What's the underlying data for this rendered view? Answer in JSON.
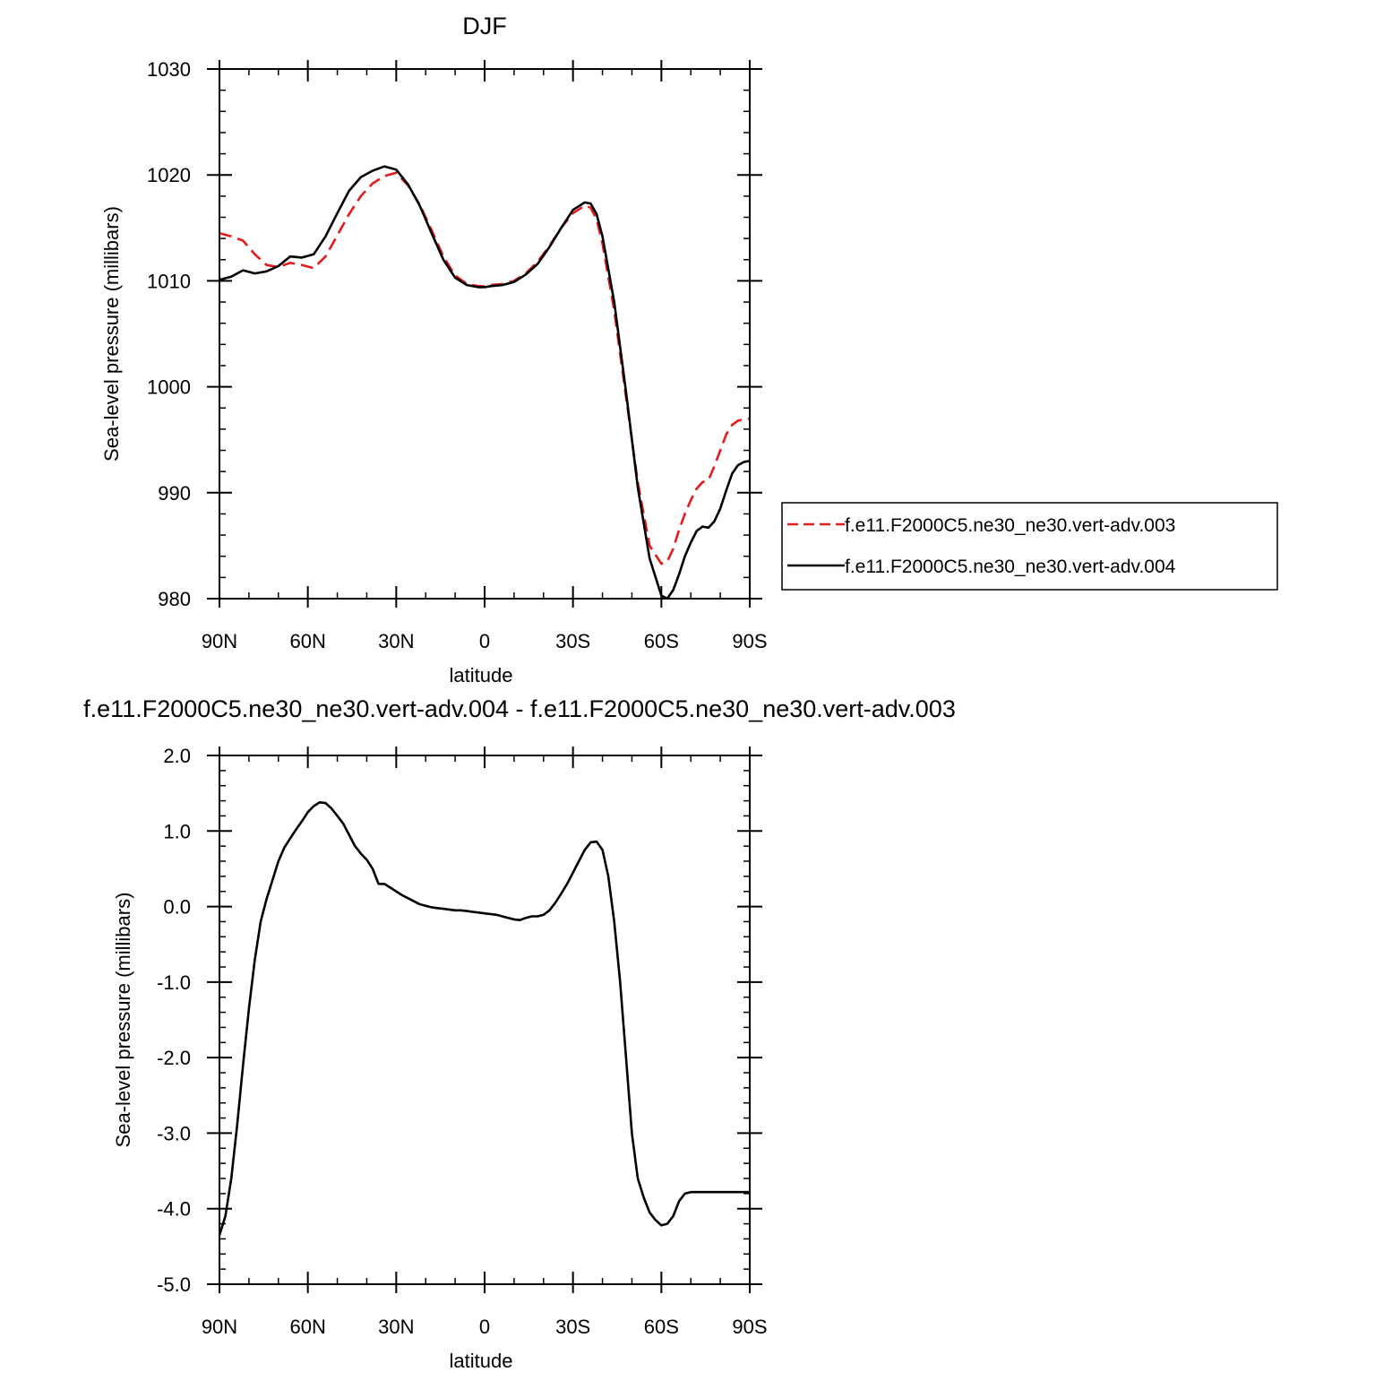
{
  "chart_data": [
    {
      "type": "line",
      "title": "DJF",
      "xlabel": "latitude",
      "ylabel": "Sea-level pressure (millibars)",
      "xlim": [
        90,
        -90
      ],
      "ylim": [
        980,
        1030
      ],
      "x_ticks": [
        90,
        60,
        30,
        0,
        -30,
        -60,
        -90
      ],
      "x_tick_labels": [
        "90N",
        "60N",
        "30N",
        "0",
        "30S",
        "60S",
        "90S"
      ],
      "y_ticks": [
        980,
        990,
        1000,
        1010,
        1020,
        1030
      ],
      "y_tick_labels": [
        "980",
        "990",
        "1000",
        "1010",
        "1020",
        "1030"
      ],
      "legend_position": "right",
      "series": [
        {
          "name": "f.e11.F2000C5.ne30_ne30.vert-adv.003",
          "color": "#e41a1c",
          "dash": "dashed",
          "x": [
            90,
            86,
            82,
            78,
            74,
            70,
            66,
            62,
            58,
            54,
            50,
            46,
            42,
            38,
            34,
            30,
            26,
            22,
            18,
            14,
            10,
            6,
            2,
            0,
            -2,
            -6,
            -10,
            -14,
            -18,
            -22,
            -26,
            -30,
            -34,
            -36,
            -38,
            -40,
            -44,
            -48,
            -52,
            -56,
            -60,
            -62,
            -64,
            -66,
            -68,
            -70,
            -72,
            -74,
            -76,
            -78,
            -80,
            -82,
            -84,
            -86,
            -88,
            -90
          ],
          "y": [
            1014.5,
            1014.2,
            1013.8,
            1012.5,
            1011.5,
            1011.3,
            1011.7,
            1011.5,
            1011.2,
            1012.3,
            1014.3,
            1016.3,
            1018.0,
            1019.2,
            1019.9,
            1020.2,
            1019.0,
            1017.2,
            1014.8,
            1012.3,
            1010.5,
            1009.7,
            1009.5,
            1009.5,
            1009.6,
            1009.7,
            1010.0,
            1010.7,
            1011.8,
            1013.3,
            1015.0,
            1016.4,
            1017.1,
            1016.9,
            1015.8,
            1013.5,
            1007.2,
            999.0,
            991.0,
            985.0,
            983.3,
            983.5,
            984.7,
            986.5,
            988.0,
            989.3,
            990.4,
            991.0,
            991.2,
            992.5,
            994.0,
            995.5,
            996.4,
            996.8,
            996.9,
            997.0
          ]
        },
        {
          "name": "f.e11.F2000C5.ne30_ne30.vert-adv.004",
          "color": "#000000",
          "dash": "solid",
          "x": [
            90,
            86,
            82,
            78,
            74,
            70,
            66,
            62,
            58,
            54,
            50,
            46,
            42,
            38,
            34,
            30,
            26,
            22,
            18,
            14,
            10,
            6,
            2,
            0,
            -2,
            -6,
            -10,
            -14,
            -18,
            -22,
            -26,
            -30,
            -34,
            -36,
            -38,
            -40,
            -44,
            -48,
            -52,
            -56,
            -60,
            -62,
            -64,
            -66,
            -68,
            -70,
            -72,
            -74,
            -76,
            -78,
            -80,
            -82,
            -84,
            -86,
            -88,
            -90
          ],
          "y": [
            1010.1,
            1010.4,
            1011.0,
            1010.7,
            1010.9,
            1011.4,
            1012.3,
            1012.2,
            1012.5,
            1014.2,
            1016.4,
            1018.5,
            1019.8,
            1020.4,
            1020.8,
            1020.5,
            1019.1,
            1017.1,
            1014.5,
            1012.0,
            1010.3,
            1009.6,
            1009.4,
            1009.4,
            1009.5,
            1009.6,
            1009.9,
            1010.6,
            1011.6,
            1013.2,
            1015.0,
            1016.7,
            1017.4,
            1017.3,
            1016.3,
            1014.2,
            1008.0,
            999.5,
            990.5,
            983.8,
            980.3,
            980.0,
            980.8,
            982.3,
            984.0,
            985.3,
            986.4,
            986.8,
            986.7,
            987.3,
            988.5,
            990.2,
            991.8,
            992.6,
            992.9,
            993.0
          ]
        }
      ]
    },
    {
      "type": "line",
      "title": "f.e11.F2000C5.ne30_ne30.vert-adv.004 - f.e11.F2000C5.ne30_ne30.vert-adv.003",
      "xlabel": "latitude",
      "ylabel": "Sea-level pressure (millibars)",
      "xlim": [
        90,
        -90
      ],
      "ylim": [
        -5,
        2
      ],
      "x_ticks": [
        90,
        60,
        30,
        0,
        -30,
        -60,
        -90
      ],
      "x_tick_labels": [
        "90N",
        "60N",
        "30N",
        "0",
        "30S",
        "60S",
        "90S"
      ],
      "y_ticks": [
        -5,
        -4,
        -3,
        -2,
        -1,
        0,
        1,
        2
      ],
      "y_tick_labels": [
        "-5.0",
        "-4.0",
        "-3.0",
        "-2.0",
        "-1.0",
        "0.0",
        "1.0",
        "2.0"
      ],
      "series": [
        {
          "color": "#000000",
          "dash": "solid",
          "x": [
            90,
            88,
            86,
            84,
            82,
            80,
            78,
            76,
            74,
            72,
            70,
            68,
            66,
            64,
            62,
            60,
            58,
            56,
            54,
            52,
            50,
            48,
            46,
            44,
            42,
            40,
            38,
            36,
            34,
            32,
            30,
            28,
            26,
            24,
            22,
            20,
            18,
            16,
            14,
            12,
            10,
            8,
            6,
            4,
            2,
            0,
            -2,
            -4,
            -6,
            -8,
            -10,
            -12,
            -14,
            -16,
            -18,
            -20,
            -22,
            -24,
            -26,
            -28,
            -30,
            -32,
            -34,
            -36,
            -38,
            -40,
            -42,
            -44,
            -46,
            -48,
            -50,
            -52,
            -54,
            -56,
            -58,
            -60,
            -62,
            -64,
            -66,
            -68,
            -70,
            -72,
            -74,
            -76,
            -78,
            -80,
            -82,
            -84,
            -86,
            -88,
            -90
          ],
          "y": [
            -4.35,
            -4.1,
            -3.6,
            -2.9,
            -2.1,
            -1.35,
            -0.7,
            -0.2,
            0.1,
            0.35,
            0.6,
            0.78,
            0.9,
            1.02,
            1.13,
            1.25,
            1.33,
            1.38,
            1.37,
            1.3,
            1.2,
            1.1,
            0.95,
            0.8,
            0.7,
            0.62,
            0.5,
            0.3,
            0.3,
            0.25,
            0.2,
            0.15,
            0.11,
            0.07,
            0.03,
            0.01,
            -0.01,
            -0.02,
            -0.03,
            -0.04,
            -0.05,
            -0.05,
            -0.06,
            -0.07,
            -0.08,
            -0.09,
            -0.1,
            -0.11,
            -0.13,
            -0.15,
            -0.17,
            -0.18,
            -0.15,
            -0.13,
            -0.13,
            -0.11,
            -0.05,
            0.05,
            0.17,
            0.3,
            0.45,
            0.6,
            0.75,
            0.85,
            0.86,
            0.75,
            0.4,
            -0.2,
            -1.0,
            -2.0,
            -3.0,
            -3.6,
            -3.85,
            -4.05,
            -4.15,
            -4.22,
            -4.2,
            -4.1,
            -3.9,
            -3.8,
            -3.78,
            -3.78,
            -3.78,
            -3.78,
            -3.78,
            -3.78,
            -3.78,
            -3.78,
            -3.78,
            -3.78,
            -3.78
          ]
        }
      ]
    }
  ]
}
